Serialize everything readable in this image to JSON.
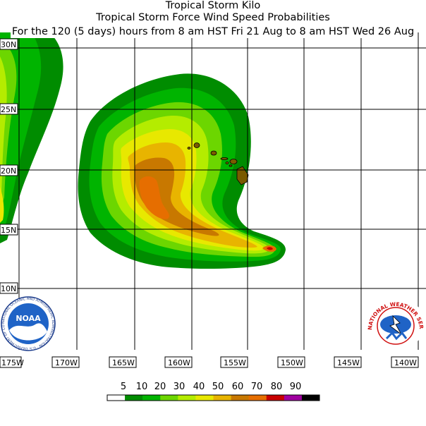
{
  "title": {
    "line1": "Tropical Storm Kilo",
    "line2": "Tropical Storm Force Wind Speed Probabilities",
    "line3": "For the 120 (5 days) hours from 8 am HST Fri 21 Aug to 8 am HST Wed 26 Aug"
  },
  "map": {
    "lat_labels": [
      "30N",
      "25N",
      "20N",
      "15N",
      "10N"
    ],
    "lon_labels": [
      "175W",
      "170W",
      "165W",
      "160W",
      "155W",
      "150W",
      "145W",
      "140W"
    ]
  },
  "legend": {
    "labels": [
      "5",
      "10",
      "20",
      "30",
      "40",
      "50",
      "60",
      "70",
      "80",
      "90"
    ],
    "colors": [
      "#ffffff",
      "#008c00",
      "#00b400",
      "#6cd600",
      "#b4ec00",
      "#e8e800",
      "#e8b400",
      "#c87800",
      "#e66e00",
      "#c80000",
      "#a000a0",
      "#000000"
    ]
  },
  "logos": {
    "noaa_text": "NOAA",
    "noaa_ring": "NATIONAL OCEANIC AND ATMOSPHERIC ADMINISTRATION · U.S. DEPARTMENT OF COMMERCE",
    "nws_ring": "NATIONAL WEATHER SERVICE"
  },
  "storm_center_marker": "storm-center"
}
